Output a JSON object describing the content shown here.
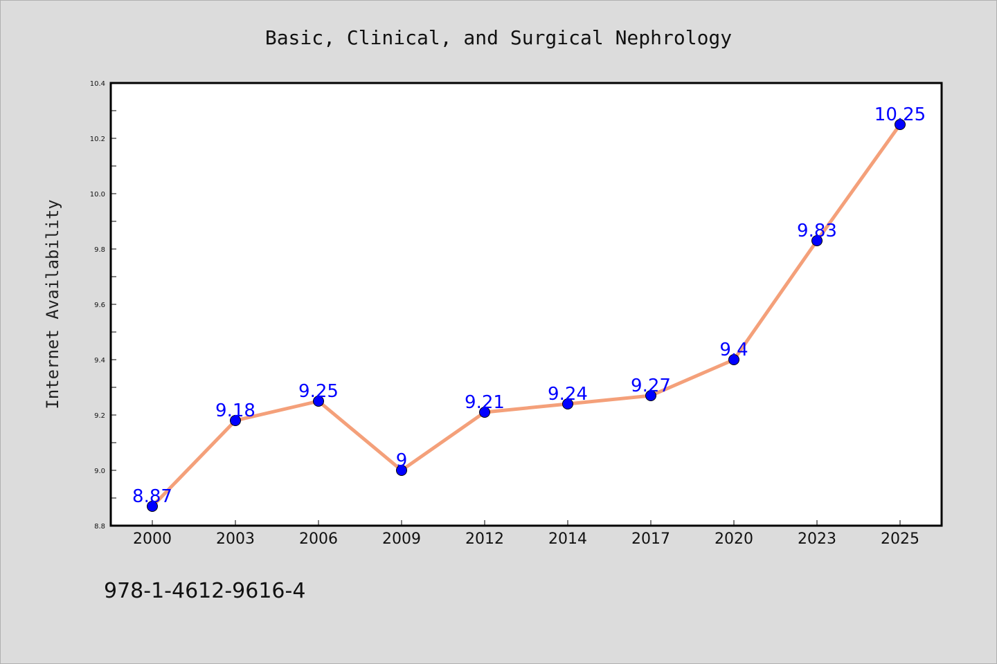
{
  "footer_text": "978-1-4612-9616-4",
  "chart_data": {
    "type": "line",
    "title": "Basic, Clinical, and Surgical Nephrology",
    "xlabel": "",
    "ylabel": "Internet Availability",
    "categories": [
      "2000",
      "2003",
      "2006",
      "2009",
      "2012",
      "2014",
      "2017",
      "2020",
      "2023",
      "2025"
    ],
    "series": [
      {
        "values": [
          8.87,
          9.18,
          9.25,
          9,
          9.21,
          9.24,
          9.27,
          9.4,
          9.83,
          10.25
        ],
        "labels": [
          "8.87",
          "9.18",
          "9.25",
          "9",
          "9.21",
          "9.24",
          "9.27",
          "9.4",
          "9.83",
          "10.25"
        ],
        "line_color": "#f4a07a",
        "marker_color": "#0000ff"
      }
    ],
    "ylim": [
      8.8,
      10.4
    ],
    "yticks": [
      "8.8",
      "9.0",
      "9.2",
      "9.4",
      "9.6",
      "9.8",
      "10.0",
      "10.2",
      "10.4"
    ],
    "grid": false,
    "legend": "none"
  }
}
